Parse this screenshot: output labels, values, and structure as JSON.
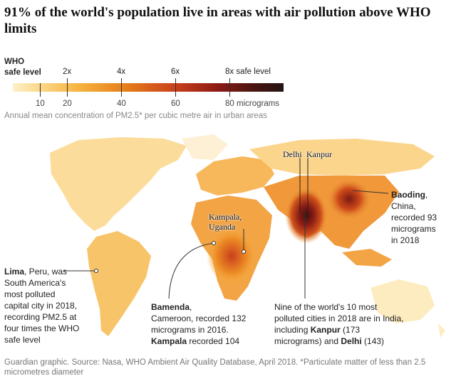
{
  "title": "91% of the world's population live in areas with air pollution above WHO limits",
  "legend": {
    "who_line1": "WHO",
    "who_line2": "safe level",
    "multipliers": [
      {
        "label": "2x",
        "value": 20
      },
      {
        "label": "4x",
        "value": 40
      },
      {
        "label": "6x",
        "value": 60
      },
      {
        "label": "8x safe level",
        "value": 80
      }
    ],
    "ticks": [
      {
        "label": "10",
        "value": 10
      },
      {
        "label": "20",
        "value": 20
      },
      {
        "label": "40",
        "value": 40
      },
      {
        "label": "60",
        "value": 60
      },
      {
        "label": "80 micrograms",
        "value": 80
      }
    ],
    "range": [
      0,
      100
    ],
    "caption": "Annual mean concentration of PM2.5* per cubic metre air in urban areas"
  },
  "cities": {
    "delhi": "Delhi",
    "kanpur": "Kanpur",
    "kampala_line1": "Kampala,",
    "kampala_line2": "Uganda"
  },
  "annotations": {
    "baoding": {
      "bold": "Baoding",
      "rest1": ",",
      "line2": "China,",
      "line3": "recorded 93",
      "line4": "micrograms",
      "line5": "in 2018"
    },
    "lima": {
      "bold": "Lima",
      "rest1": ", Peru, was",
      "line2": "South America's",
      "line3": "most polluted",
      "line4": "capital city in 2018,",
      "line5": "recording PM2.5 at",
      "line6": "four times the WHO",
      "line7": "safe level"
    },
    "bamenda": {
      "bold": "Bamenda",
      "rest1": ",",
      "line2": "Cameroon, recorded 132",
      "line3": "micrograms in 2016.",
      "bold2": "Kampala",
      "rest4": " recorded 104"
    },
    "india": {
      "line1": "Nine of the world's 10 most",
      "line2": "polluted cities in 2018 are in India,",
      "pre3": "including ",
      "bold3": "Kanpur",
      "rest3": " (173",
      "pre4": "micrograms) and ",
      "bold4": "Delhi",
      "rest4": " (143)"
    }
  },
  "source": "Guardian graphic. Source: Nasa, WHO Ambient Air Quality Database, April 2018. *Particulate matter of less than 2.5 micrometres diameter"
}
